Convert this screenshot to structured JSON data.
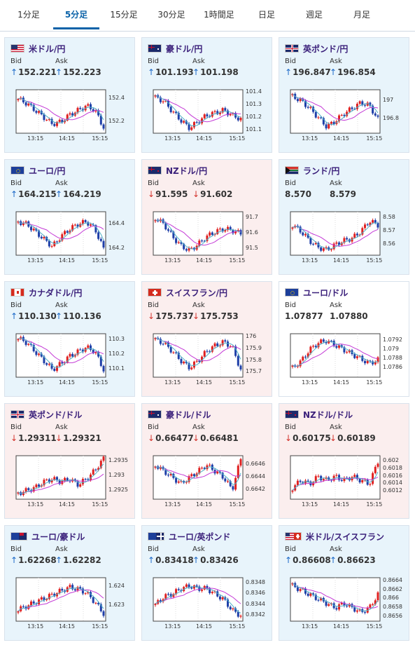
{
  "tabs": [
    {
      "label": "1分足",
      "active": false
    },
    {
      "label": "5分足",
      "active": true
    },
    {
      "label": "15分足",
      "active": false
    },
    {
      "label": "30分足",
      "active": false
    },
    {
      "label": "1時間足",
      "active": false
    },
    {
      "label": "日足",
      "active": false
    },
    {
      "label": "週足",
      "active": false
    },
    {
      "label": "月足",
      "active": false
    }
  ],
  "labels": {
    "bid": "Bid",
    "ask": "Ask"
  },
  "colors": {
    "up": "#1a68c8",
    "down": "#d3322b",
    "candle_up": "#e02020",
    "candle_down": "#1f3fa8",
    "ma_short": "#4fb0c6",
    "ma_long": "#c43ad6",
    "card_blue": "#e8f4fb",
    "card_pink": "#fbeeee",
    "pair_text": "#3a1f7a",
    "tab_active": "#0a62a8"
  },
  "cards": [
    {
      "pair": "米ドル/円",
      "flag": "us",
      "bg": "blue",
      "bid": "152.221",
      "ask": "152.223",
      "bid_dir": "up",
      "ask_dir": "up",
      "chart": {
        "times": [
          "13:15",
          "14:15",
          "15:15"
        ],
        "yticks": [
          "152.4",
          "152.2"
        ],
        "ylim": [
          152.1,
          152.48
        ],
        "trend": [
          152.4,
          152.36,
          152.3,
          152.24,
          152.18,
          152.2,
          152.26,
          152.3,
          152.34,
          152.3,
          152.15
        ]
      }
    },
    {
      "pair": "豪ドル/円",
      "flag": "au",
      "bg": "blue",
      "bid": "101.193",
      "ask": "101.198",
      "bid_dir": "up",
      "ask_dir": "up",
      "chart": {
        "times": [
          "13:15",
          "14:15",
          "15:15"
        ],
        "yticks": [
          "101.4",
          "101.3",
          "101.2",
          "101.1"
        ],
        "ylim": [
          101.08,
          101.42
        ],
        "trend": [
          101.36,
          101.33,
          101.25,
          101.18,
          101.12,
          101.17,
          101.22,
          101.24,
          101.26,
          101.22,
          101.19
        ]
      }
    },
    {
      "pair": "英ポンド/円",
      "flag": "uk",
      "bg": "blue",
      "bid": "196.847",
      "ask": "196.854",
      "bid_dir": "up",
      "ask_dir": "up",
      "chart": {
        "times": [
          "13:15",
          "14:15",
          "15:15"
        ],
        "yticks": [
          "197",
          "196.8"
        ],
        "ylim": [
          196.65,
          197.12
        ],
        "trend": [
          197.05,
          197.0,
          196.92,
          196.82,
          196.72,
          196.78,
          196.86,
          196.92,
          196.98,
          196.95,
          196.8
        ]
      }
    },
    {
      "pair": "ユーロ/円",
      "flag": "eu",
      "bg": "blue",
      "bid": "164.215",
      "ask": "164.219",
      "bid_dir": "up",
      "ask_dir": "up",
      "chart": {
        "times": [
          "13:15",
          "14:15",
          "15:15"
        ],
        "yticks": [
          "164.4",
          "164.2"
        ],
        "ylim": [
          164.15,
          164.5
        ],
        "trend": [
          164.42,
          164.4,
          164.34,
          164.28,
          164.22,
          164.3,
          164.36,
          164.4,
          164.42,
          164.36,
          164.2
        ]
      }
    },
    {
      "pair": "NZドル/円",
      "flag": "nz",
      "bg": "pink",
      "bid": "91.595",
      "ask": "91.602",
      "bid_dir": "down",
      "ask_dir": "down",
      "chart": {
        "times": [
          "13:15",
          "14:15",
          "15:15"
        ],
        "yticks": [
          "91.7",
          "91.6",
          "91.5"
        ],
        "ylim": [
          91.46,
          91.74
        ],
        "trend": [
          91.7,
          91.66,
          91.58,
          91.52,
          91.49,
          91.53,
          91.58,
          91.61,
          91.63,
          91.62,
          91.6
        ]
      }
    },
    {
      "pair": "ランド/円",
      "flag": "za",
      "bg": "blue",
      "bid": "8.570",
      "ask": "8.579",
      "bid_dir": "none",
      "ask_dir": "none",
      "chart": {
        "times": [
          "13:15",
          "14:15",
          "15:15"
        ],
        "yticks": [
          "8.58",
          "8.57",
          "8.56"
        ],
        "ylim": [
          8.552,
          8.585
        ],
        "trend": [
          8.575,
          8.57,
          8.563,
          8.558,
          8.556,
          8.56,
          8.563,
          8.565,
          8.57,
          8.578,
          8.575
        ]
      }
    },
    {
      "pair": "カナダドル/円",
      "flag": "ca",
      "bg": "blue",
      "bid": "110.130",
      "ask": "110.136",
      "bid_dir": "up",
      "ask_dir": "up",
      "chart": {
        "times": [
          "13:15",
          "14:15",
          "15:15"
        ],
        "yticks": [
          "110.3",
          "110.2",
          "110.1"
        ],
        "ylim": [
          110.05,
          110.34
        ],
        "trend": [
          110.31,
          110.28,
          110.22,
          110.16,
          110.1,
          110.14,
          110.19,
          110.22,
          110.25,
          110.22,
          110.1
        ]
      }
    },
    {
      "pair": "スイスフラン/円",
      "flag": "ch",
      "bg": "pink",
      "bid": "175.737",
      "ask": "175.753",
      "bid_dir": "down",
      "ask_dir": "down",
      "chart": {
        "times": [
          "13:15",
          "14:15",
          "15:15"
        ],
        "yticks": [
          "176",
          "175.9",
          "175.8",
          "175.7"
        ],
        "ylim": [
          175.66,
          176.03
        ],
        "trend": [
          175.98,
          175.95,
          175.88,
          175.8,
          175.74,
          175.8,
          175.88,
          175.93,
          175.96,
          175.92,
          175.72
        ]
      }
    },
    {
      "pair": "ユーロ/ドル",
      "flag": "eu",
      "bg": "white",
      "bid": "1.07877",
      "ask": "1.07880",
      "bid_dir": "none",
      "ask_dir": "none",
      "chart": {
        "times": [
          "13:15",
          "14:15",
          "15:15"
        ],
        "yticks": [
          "1.0792",
          "1.079",
          "1.0788",
          "1.0786"
        ],
        "ylim": [
          1.0784,
          1.07935
        ],
        "trend": [
          1.0786,
          1.07875,
          1.079,
          1.07915,
          1.0792,
          1.0791,
          1.079,
          1.0789,
          1.0788,
          1.0787,
          1.07878
        ]
      }
    },
    {
      "pair": "英ポンド/ドル",
      "flag": "uk",
      "bg": "pink",
      "bid": "1.29311",
      "ask": "1.29321",
      "bid_dir": "down",
      "ask_dir": "down",
      "chart": {
        "times": [
          "13:15",
          "14:15",
          "15:15"
        ],
        "yticks": [
          "1.2935",
          "1.293",
          "1.2925"
        ],
        "ylim": [
          1.2922,
          1.2937
        ],
        "trend": [
          1.2924,
          1.2925,
          1.2926,
          1.2928,
          1.2929,
          1.2928,
          1.2929,
          1.2927,
          1.2929,
          1.2932,
          1.2936
        ]
      }
    },
    {
      "pair": "豪ドル/ドル",
      "flag": "au",
      "bg": "pink",
      "bid": "0.66477",
      "ask": "0.66481",
      "bid_dir": "down",
      "ask_dir": "down",
      "chart": {
        "times": [
          "13:15",
          "14:15",
          "15:15"
        ],
        "yticks": [
          "0.6646",
          "0.6644",
          "0.6642"
        ],
        "ylim": [
          0.66405,
          0.66475
        ],
        "trend": [
          0.6646,
          0.6645,
          0.6644,
          0.6643,
          0.6644,
          0.6645,
          0.6646,
          0.6645,
          0.6644,
          0.6642,
          0.6647
        ]
      }
    },
    {
      "pair": "NZドル/ドル",
      "flag": "nz",
      "bg": "pink",
      "bid": "0.60175",
      "ask": "0.60189",
      "bid_dir": "down",
      "ask_dir": "down",
      "chart": {
        "times": [
          "13:15",
          "14:15",
          "15:15"
        ],
        "yticks": [
          "0.602",
          "0.6018",
          "0.6016",
          "0.6014",
          "0.6012"
        ],
        "ylim": [
          0.601,
          0.60215
        ],
        "trend": [
          0.6013,
          0.6015,
          0.6014,
          0.6016,
          0.6015,
          0.6016,
          0.6015,
          0.6016,
          0.6015,
          0.6014,
          0.602
        ]
      }
    },
    {
      "pair": "ユーロ/豪ドル",
      "flag": "euau",
      "bg": "blue",
      "bid": "1.62268",
      "ask": "1.62282",
      "bid_dir": "up",
      "ask_dir": "up",
      "chart": {
        "times": [
          "13:15",
          "14:15",
          "15:15"
        ],
        "yticks": [
          "1.624",
          "1.623"
        ],
        "ylim": [
          1.6222,
          1.6245
        ],
        "trend": [
          1.6228,
          1.623,
          1.6232,
          1.6234,
          1.6236,
          1.6238,
          1.624,
          1.6239,
          1.6237,
          1.6232,
          1.6226
        ]
      }
    },
    {
      "pair": "ユーロ/英ポンド",
      "flag": "euuk",
      "bg": "blue",
      "bid": "0.83418",
      "ask": "0.83426",
      "bid_dir": "up",
      "ask_dir": "up",
      "chart": {
        "times": [
          "13:15",
          "14:15",
          "15:15"
        ],
        "yticks": [
          "0.8348",
          "0.8346",
          "0.8344",
          "0.8342"
        ],
        "ylim": [
          0.8341,
          0.8349
        ],
        "trend": [
          0.8344,
          0.83455,
          0.8346,
          0.8347,
          0.83475,
          0.8347,
          0.8347,
          0.8346,
          0.8345,
          0.8343,
          0.8342
        ]
      }
    },
    {
      "pair": "米ドル/スイスフラン",
      "flag": "usch",
      "bg": "blue",
      "bid": "0.86608",
      "ask": "0.86623",
      "bid_dir": "up",
      "ask_dir": "up",
      "chart": {
        "times": [
          "13:15",
          "14:15",
          "15:15"
        ],
        "yticks": [
          "0.8664",
          "0.8662",
          "0.866",
          "0.8658",
          "0.8656"
        ],
        "ylim": [
          0.8655,
          0.86648
        ],
        "trend": [
          0.8663,
          0.8662,
          0.8661,
          0.866,
          0.8659,
          0.8658,
          0.8659,
          0.8658,
          0.8657,
          0.8658,
          0.8661
        ]
      }
    }
  ]
}
